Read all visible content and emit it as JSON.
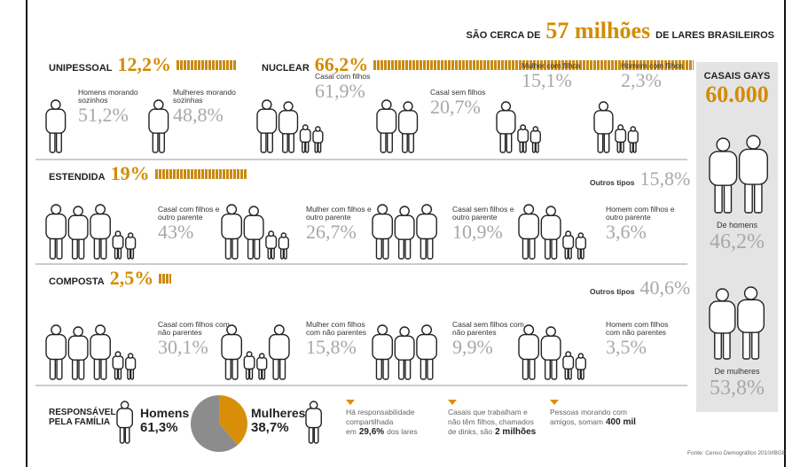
{
  "header": {
    "pre": "SÃO CERCA DE",
    "number": "57 milhões",
    "post": "DE LARES BRASILEIROS"
  },
  "sections": [
    {
      "title": "UNIPESSOAL",
      "share_label": "12,2%",
      "share": 12.2,
      "items": [
        {
          "label": "Homens morando sozinhos",
          "value": "51,2%"
        },
        {
          "label": "Mulheres morando sozinhas",
          "value": "48,8%"
        }
      ]
    },
    {
      "title": "NUCLEAR",
      "share_label": "66,2%",
      "share": 66.2,
      "items": [
        {
          "label": "Casal com filhos",
          "value": "61,9%"
        },
        {
          "label": "Casal sem filhos",
          "value": "20,7%"
        },
        {
          "label": "Mulher com filhos",
          "value": "15,1%"
        },
        {
          "label": "Homem com filhos",
          "value": "2,3%"
        }
      ]
    },
    {
      "title": "ESTENDIDA",
      "share_label": "19%",
      "share": 19,
      "others": {
        "label": "Outros tipos",
        "value": "15,8%"
      },
      "items": [
        {
          "label": "Casal com filhos e outro parente",
          "value": "43%"
        },
        {
          "label": "Mulher com filhos e outro parente",
          "value": "26,7%"
        },
        {
          "label": "Casal sem filhos e outro parente",
          "value": "10,9%"
        },
        {
          "label": "Homem com filhos e outro parente",
          "value": "3,6%"
        }
      ]
    },
    {
      "title": "COMPOSTA",
      "share_label": "2,5%",
      "share": 2.5,
      "others": {
        "label": "Outros tipos",
        "value": "40,6%"
      },
      "items": [
        {
          "label": "Casal com filhos com não parentes",
          "value": "30,1%"
        },
        {
          "label": "Mulher com filhos com não parentes",
          "value": "15,8%"
        },
        {
          "label": "Casal sem filhos com não parentes",
          "value": "9,9%"
        },
        {
          "label": "Homem com filhos com não parentes",
          "value": "3,5%"
        }
      ]
    }
  ],
  "gay": {
    "title": "CASAIS GAYS",
    "total": "60.000",
    "items": [
      {
        "label": "De homens",
        "value": "46,2%"
      },
      {
        "label": "De mulheres",
        "value": "53,8%"
      }
    ]
  },
  "responsible": {
    "title": "RESPONSÁVEL PELA FAMÍLIA",
    "shares": [
      {
        "label": "Homens",
        "value_label": "61,3%",
        "value": 61.3,
        "color": "#8c8c8c"
      },
      {
        "label": "Mulheres",
        "value_label": "38,7%",
        "value": 38.7,
        "color": "#d98e0a"
      }
    ]
  },
  "notes": [
    {
      "text": "Há responsabilidade compartilhada em",
      "highlight": "29,6%",
      "tail": "dos lares"
    },
    {
      "text": "Casais que trabalham e não têm filhos, chamados de dinks, são",
      "highlight": "2 milhões"
    },
    {
      "text": "Pessoas morando com amigos, somam",
      "highlight": "400 mil"
    }
  ],
  "source": "Fonte: Censo Demográfico 2010/IBGE"
}
